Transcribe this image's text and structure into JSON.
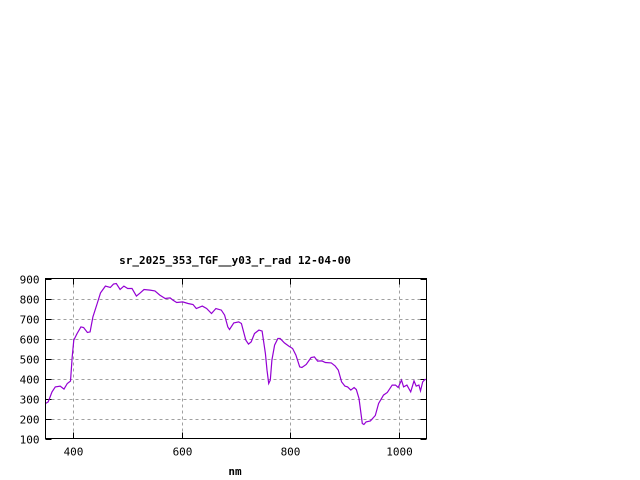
{
  "chart_data": {
    "type": "line",
    "title": "sr_2025_353_TGF__y03_r_rad 12-04-00",
    "xlabel": "nm",
    "ylabel": "",
    "xlim": [
      350,
      1050
    ],
    "ylim": [
      100,
      900
    ],
    "xticks": [
      400,
      600,
      800,
      1000
    ],
    "yticks": [
      100,
      200,
      300,
      400,
      500,
      600,
      700,
      800,
      900
    ],
    "grid": true,
    "legend": "none",
    "line_color": "#9400d3",
    "series": [
      {
        "x": [
          350,
          355,
          362,
          368,
          377,
          384,
          390,
          396,
          399,
          402,
          408,
          415,
          420,
          427,
          432,
          437,
          445,
          451,
          460,
          469,
          475,
          480,
          487,
          494,
          501,
          509,
          517,
          524,
          531,
          542,
          551,
          560,
          570,
          579,
          584,
          591,
          602,
          612,
          621,
          627,
          638,
          646,
          655,
          663,
          673,
          679,
          685,
          688,
          696,
          705,
          710,
          718,
          723,
          728,
          734,
          742,
          748,
          754,
          757,
          760,
          763,
          766,
          771,
          777,
          781,
          789,
          797,
          804,
          810,
          817,
          821,
          829,
          838,
          844,
          850,
          858,
          864,
          875,
          882,
          888,
          894,
          900,
          905,
          911,
          917,
          921,
          926,
          932,
          935,
          939,
          947,
          956,
          962,
          971,
          978,
          987,
          993,
          998,
          1004,
          1008,
          1014,
          1021,
          1027,
          1031,
          1036,
          1039,
          1043,
          1047,
          1050
        ],
        "y": [
          275,
          283,
          333,
          358,
          362,
          347,
          375,
          387,
          508,
          592,
          625,
          658,
          655,
          630,
          633,
          708,
          775,
          828,
          862,
          855,
          872,
          875,
          845,
          862,
          850,
          850,
          812,
          828,
          845,
          842,
          838,
          817,
          800,
          803,
          792,
          780,
          783,
          775,
          770,
          750,
          762,
          750,
          725,
          750,
          742,
          717,
          658,
          645,
          678,
          683,
          675,
          592,
          572,
          583,
          625,
          642,
          637,
          525,
          442,
          375,
          392,
          492,
          567,
          600,
          600,
          578,
          562,
          550,
          517,
          458,
          455,
          470,
          505,
          508,
          487,
          488,
          480,
          478,
          463,
          442,
          383,
          362,
          358,
          342,
          355,
          345,
          300,
          175,
          170,
          183,
          188,
          215,
          275,
          317,
          330,
          367,
          367,
          355,
          392,
          358,
          367,
          333,
          388,
          362,
          367,
          338,
          383,
          395,
          395
        ]
      }
    ]
  }
}
